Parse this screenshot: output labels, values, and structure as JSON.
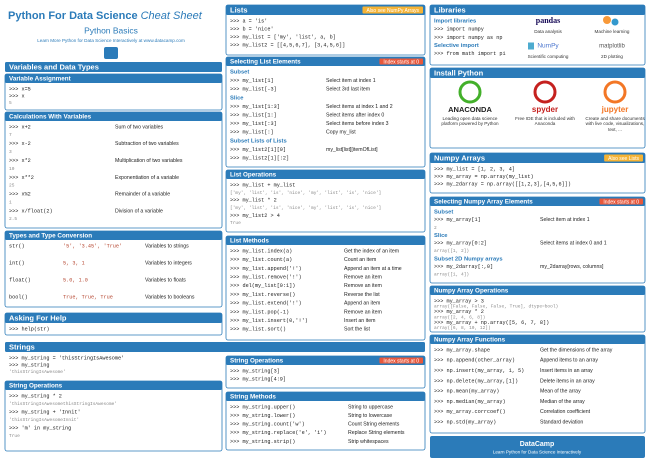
{
  "header": {
    "title": "Python For Data Science",
    "title_em": "Cheat Sheet",
    "subtitle": "Python Basics",
    "tagline": "Learn More Python for Data Science Interactively at www.datacamp.com"
  },
  "panels": [
    {
      "title": "Variables and Data Types",
      "blocks": []
    },
    {
      "title": "Variable Assignment",
      "blocks": [
        {
          "rows": [
            {
              "code": [
                ">>> x=5",
                ">>> x",
                "5"
              ]
            }
          ]
        }
      ]
    },
    {
      "title": "Calculations With Variables",
      "blocks": [
        {
          "rows": [
            {
              "code": [
                ">>> x+2",
                "7"
              ],
              "desc": "Sum of two variables"
            },
            {
              "code": [
                ">>> x-2",
                "3"
              ],
              "desc": "Subtraction of two variables"
            },
            {
              "code": [
                ">>> x*2",
                "10"
              ],
              "desc": "Multiplication of two variables"
            },
            {
              "code": [
                ">>> x**2",
                "25"
              ],
              "desc": "Exponentiation of a variable"
            },
            {
              "code": [
                ">>> x%2",
                "1"
              ],
              "desc": "Remainder of a variable"
            },
            {
              "code": [
                ">>> x/float(2)",
                "2.5"
              ],
              "desc": "Division of a variable"
            }
          ]
        }
      ]
    },
    {
      "title": "Types and Type Conversion",
      "blocks": [
        {
          "rows": [
            {
              "code": [
                "str()"
              ],
              "example": "'5', '3.45', 'True'",
              "desc": "Variables to strings"
            },
            {
              "code": [
                "int()"
              ],
              "example": "5, 3, 1",
              "desc": "Variables to integers"
            },
            {
              "code": [
                "float()"
              ],
              "example": "5.0, 1.0",
              "desc": "Variables to floats"
            },
            {
              "code": [
                "bool()"
              ],
              "example": "True, True, True",
              "desc": "Variables to booleans"
            }
          ]
        }
      ]
    },
    {
      "title": "Asking For Help",
      "blocks": [
        {
          "rows": [
            {
              "code": [
                ">>> help(str)"
              ]
            }
          ]
        }
      ]
    },
    {
      "title": "Strings",
      "blocks": [
        {
          "rows": [
            {
              "code": [
                ">>> my_string = 'thisStringIsAwesome'",
                ">>> my_string",
                "'thisStringIsAwesome'"
              ]
            }
          ]
        }
      ]
    },
    {
      "title": "String Operations",
      "blocks": [
        {
          "rows": [
            {
              "code": [
                ">>> my_string * 2",
                "'thisStringIsAwesomethisStringIsAwesome'",
                ">>> my_string + 'Innit'",
                "'thisStringIsAwesomeInnit'",
                ">>> 'm' in my_string",
                "True"
              ]
            }
          ]
        }
      ]
    },
    {
      "title": "Lists",
      "note": "Also see NumPy Arrays",
      "note_color": "#f5b335",
      "blocks": [
        {
          "rows": [
            {
              "code": [
                ">>> a = 'is'",
                ">>> b = 'nice'",
                ">>> my_list = ['my', 'list', a, b]",
                ">>> my_list2 = [[4,5,6,7], [3,4,5,6]]"
              ]
            }
          ]
        }
      ]
    },
    {
      "title": "Selecting List Elements",
      "note": "Index starts at 0",
      "note_color": "#e8583c",
      "blocks": [
        {
          "subtitle": "Subset",
          "rows": [
            {
              "code": [
                ">>> my_list[1]"
              ],
              "desc": "Select item at index 1"
            },
            {
              "code": [
                ">>> my_list[-3]"
              ],
              "desc": "Select 3rd last item"
            }
          ]
        },
        {
          "subtitle": "Slice",
          "rows": [
            {
              "code": [
                ">>> my_list[1:3]"
              ],
              "desc": "Select items at index 1 and 2"
            },
            {
              "code": [
                ">>> my_list[1:]"
              ],
              "desc": "Select items after index 0"
            },
            {
              "code": [
                ">>> my_list[:3]"
              ],
              "desc": "Select items before index 3"
            },
            {
              "code": [
                ">>> my_list[:]"
              ],
              "desc": "Copy my_list"
            }
          ]
        },
        {
          "subtitle": "Subset Lists of Lists",
          "rows": [
            {
              "code": [
                ">>> my_list2[1][0]"
              ],
              "desc": "my_list[list][itemOfList]"
            },
            {
              "code": [
                ">>> my_list2[1][:2]"
              ]
            }
          ]
        }
      ]
    },
    {
      "title": "List Operations",
      "blocks": [
        {
          "rows": [
            {
              "code": [
                ">>> my_list + my_list",
                "['my', 'list', 'is', 'nice', 'my', 'list', 'is', 'nice']",
                ">>> my_list * 2",
                "['my', 'list', 'is', 'nice', 'my', 'list', 'is', 'nice']",
                ">>> my_list2 > 4",
                "True"
              ]
            }
          ]
        }
      ]
    },
    {
      "title": "List Methods",
      "blocks": [
        {
          "rows": [
            {
              "code": [
                ">>> my_list.index(a)"
              ],
              "desc": "Get the index of an item"
            },
            {
              "code": [
                ">>> my_list.count(a)"
              ],
              "desc": "Count an item"
            },
            {
              "code": [
                ">>> my_list.append('!')"
              ],
              "desc": "Append an item at a time"
            },
            {
              "code": [
                ">>> my_list.remove('!')"
              ],
              "desc": "Remove an item"
            },
            {
              "code": [
                ">>> del(my_list[0:1])"
              ],
              "desc": "Remove an item"
            },
            {
              "code": [
                ">>> my_list.reverse()"
              ],
              "desc": "Reverse the list"
            },
            {
              "code": [
                ">>> my_list.extend('!')"
              ],
              "desc": "Append an item"
            },
            {
              "code": [
                ">>> my_list.pop(-1)"
              ],
              "desc": "Remove an item"
            },
            {
              "code": [
                ">>> my_list.insert(0,'!')"
              ],
              "desc": "Insert an item"
            },
            {
              "code": [
                ">>> my_list.sort()"
              ],
              "desc": "Sort the list"
            }
          ]
        }
      ]
    },
    {
      "title": "String Operations",
      "note": "Index starts at 0",
      "note_color": "#e8583c",
      "blocks": [
        {
          "rows": [
            {
              "code": [
                ">>> my_string[3]",
                ">>> my_string[4:9]"
              ]
            }
          ]
        }
      ]
    },
    {
      "title": "String Methods",
      "blocks": [
        {
          "rows": [
            {
              "code": [
                ">>> my_string.upper()"
              ],
              "desc": "String to uppercase"
            },
            {
              "code": [
                ">>> my_string.lower()"
              ],
              "desc": "String to lowercase"
            },
            {
              "code": [
                ">>> my_string.count('w')"
              ],
              "desc": "Count String elements"
            },
            {
              "code": [
                ">>> my_string.replace('e', 'i')"
              ],
              "desc": "Replace String elements"
            },
            {
              "code": [
                ">>> my_string.strip()"
              ],
              "desc": "Strip whitespaces"
            }
          ]
        }
      ]
    },
    {
      "title": "Libraries",
      "blocks": [
        {
          "subtitle": "Import libraries",
          "rows": [
            {
              "code": [
                ">>> import numpy",
                ">>> import numpy as np"
              ]
            }
          ]
        },
        {
          "subtitle": "Selective import",
          "rows": [
            {
              "code": [
                ">>> from math import pi"
              ]
            }
          ]
        }
      ],
      "logos": [
        {
          "name": "pandas",
          "caption": "Data analysis"
        },
        {
          "caption": "Machine learning"
        },
        {
          "name": "NumPy",
          "caption": "Scientific computing"
        },
        {
          "name": "matplotlib",
          "caption": "2D plotting"
        }
      ]
    },
    {
      "title": "Install Python",
      "blocks": [],
      "tools": [
        {
          "name": "ANACONDA",
          "caption": "Leading open data science platform powered by Python"
        },
        {
          "name": "spyder",
          "caption": "Free IDE that is included with Anaconda"
        },
        {
          "name": "jupyter",
          "caption": "Create and share documents with live code, visualizations, text, ..."
        }
      ]
    },
    {
      "title": "Numpy Arrays",
      "note": "Also see Lists",
      "note_color": "#f5b335",
      "blocks": [
        {
          "rows": [
            {
              "code": [
                ">>> my_list = [1, 2, 3, 4]",
                ">>> my_array = np.array(my_list)",
                ">>> my_2darray = np.array([[1,2,3],[4,5,6]])"
              ]
            }
          ]
        }
      ]
    },
    {
      "title": "Selecting Numpy Array Elements",
      "note": "Index starts at 0",
      "note_color": "#e8583c",
      "blocks": [
        {
          "subtitle": "Subset",
          "rows": [
            {
              "code": [
                ">>> my_array[1]",
                "2"
              ],
              "desc": "Select item at index 1"
            }
          ]
        },
        {
          "subtitle": "Slice",
          "rows": [
            {
              "code": [
                ">>> my_array[0:2]",
                "array([1, 2])"
              ],
              "desc": "Select items at index 0 and 1"
            }
          ]
        },
        {
          "subtitle": "Subset 2D Numpy arrays",
          "rows": [
            {
              "code": [
                ">>> my_2darray[:,0]",
                "array([1, 4])"
              ],
              "desc": "my_2darray[rows, columns]"
            }
          ]
        }
      ]
    },
    {
      "title": "Numpy Array Operations",
      "blocks": [
        {
          "rows": [
            {
              "code": [
                ">>> my_array > 3",
                "array([False, False, False, True], dtype=bool)",
                ">>> my_array * 2",
                "array([2, 4, 6, 8])",
                ">>> my_array + np.array([5, 6, 7, 8])",
                "array([6, 8, 10, 12])"
              ]
            }
          ]
        }
      ]
    },
    {
      "title": "Numpy Array Functions",
      "blocks": [
        {
          "rows": [
            {
              "code": [
                ">>> my_array.shape"
              ],
              "desc": "Get the dimensions of the array"
            },
            {
              "code": [
                ">>> np.append(other_array)"
              ],
              "desc": "Append items to an array"
            },
            {
              "code": [
                ">>> np.insert(my_array, 1, 5)"
              ],
              "desc": "Insert items in an array"
            },
            {
              "code": [
                ">>> np.delete(my_array,[1])"
              ],
              "desc": "Delete items in an array"
            },
            {
              "code": [
                ">>> np.mean(my_array)"
              ],
              "desc": "Mean of the array"
            },
            {
              "code": [
                ">>> np.median(my_array)"
              ],
              "desc": "Median of the array"
            },
            {
              "code": [
                ">>> my_array.corrcoef()"
              ],
              "desc": "Correlation coefficient"
            },
            {
              "code": [
                ">>> np.std(my_array)"
              ],
              "desc": "Standard deviation"
            }
          ]
        }
      ]
    }
  ],
  "footer": {
    "brand": "DataCamp",
    "tagline": "Learn Python for Data Science Interactively"
  }
}
